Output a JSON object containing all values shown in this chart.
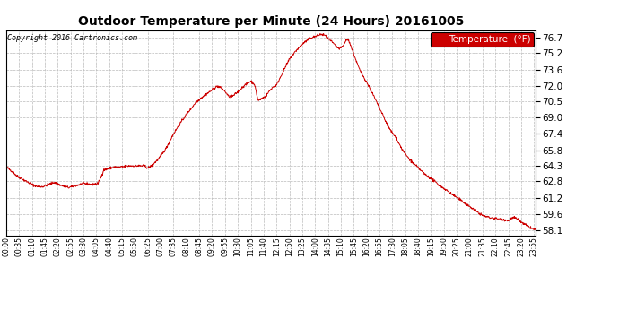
{
  "title": "Outdoor Temperature per Minute (24 Hours) 20161005",
  "copyright": "Copyright 2016 Cartronics.com",
  "legend_label": "Temperature  (°F)",
  "line_color": "#cc0000",
  "background_color": "#ffffff",
  "grid_color": "#bbbbbb",
  "legend_bg": "#cc0000",
  "legend_text_color": "#ffffff",
  "yticks": [
    58.1,
    59.6,
    61.2,
    62.8,
    64.3,
    65.8,
    67.4,
    69.0,
    70.5,
    72.0,
    73.6,
    75.2,
    76.7
  ],
  "ylim": [
    57.6,
    77.4
  ],
  "xtick_interval_minutes": 35,
  "total_minutes": 1440,
  "key_points": [
    [
      0,
      64.2
    ],
    [
      15,
      63.8
    ],
    [
      30,
      63.3
    ],
    [
      50,
      62.9
    ],
    [
      70,
      62.5
    ],
    [
      85,
      62.3
    ],
    [
      100,
      62.3
    ],
    [
      115,
      62.5
    ],
    [
      130,
      62.7
    ],
    [
      150,
      62.4
    ],
    [
      170,
      62.2
    ],
    [
      190,
      62.4
    ],
    [
      210,
      62.6
    ],
    [
      230,
      62.5
    ],
    [
      250,
      62.6
    ],
    [
      260,
      63.4
    ],
    [
      265,
      63.9
    ],
    [
      275,
      64.0
    ],
    [
      285,
      64.1
    ],
    [
      295,
      64.2
    ],
    [
      305,
      64.15
    ],
    [
      315,
      64.2
    ],
    [
      335,
      64.3
    ],
    [
      355,
      64.3
    ],
    [
      375,
      64.3
    ],
    [
      385,
      64.1
    ],
    [
      395,
      64.3
    ],
    [
      415,
      65.0
    ],
    [
      435,
      66.0
    ],
    [
      455,
      67.4
    ],
    [
      475,
      68.5
    ],
    [
      495,
      69.5
    ],
    [
      515,
      70.4
    ],
    [
      535,
      71.0
    ],
    [
      555,
      71.5
    ],
    [
      565,
      71.8
    ],
    [
      575,
      72.0
    ],
    [
      585,
      71.8
    ],
    [
      595,
      71.5
    ],
    [
      605,
      71.0
    ],
    [
      615,
      71.0
    ],
    [
      625,
      71.3
    ],
    [
      635,
      71.6
    ],
    [
      645,
      72.0
    ],
    [
      655,
      72.2
    ],
    [
      665,
      72.5
    ],
    [
      675,
      72.2
    ],
    [
      685,
      70.6
    ],
    [
      695,
      70.8
    ],
    [
      705,
      71.0
    ],
    [
      715,
      71.5
    ],
    [
      725,
      71.9
    ],
    [
      735,
      72.1
    ],
    [
      750,
      73.2
    ],
    [
      770,
      74.6
    ],
    [
      790,
      75.5
    ],
    [
      810,
      76.2
    ],
    [
      830,
      76.7
    ],
    [
      845,
      76.85
    ],
    [
      855,
      77.0
    ],
    [
      865,
      76.95
    ],
    [
      875,
      76.6
    ],
    [
      885,
      76.3
    ],
    [
      895,
      75.9
    ],
    [
      905,
      75.6
    ],
    [
      915,
      75.8
    ],
    [
      925,
      76.5
    ],
    [
      932,
      76.4
    ],
    [
      940,
      75.6
    ],
    [
      950,
      74.6
    ],
    [
      962,
      73.5
    ],
    [
      980,
      72.4
    ],
    [
      1000,
      71.0
    ],
    [
      1020,
      69.5
    ],
    [
      1040,
      68.0
    ],
    [
      1060,
      67.0
    ],
    [
      1078,
      65.8
    ],
    [
      1095,
      65.0
    ],
    [
      1108,
      64.5
    ],
    [
      1118,
      64.2
    ],
    [
      1138,
      63.5
    ],
    [
      1158,
      63.0
    ],
    [
      1175,
      62.5
    ],
    [
      1195,
      62.0
    ],
    [
      1215,
      61.5
    ],
    [
      1235,
      61.0
    ],
    [
      1255,
      60.5
    ],
    [
      1275,
      60.0
    ],
    [
      1295,
      59.5
    ],
    [
      1315,
      59.3
    ],
    [
      1335,
      59.2
    ],
    [
      1355,
      59.1
    ],
    [
      1365,
      59.0
    ],
    [
      1372,
      59.2
    ],
    [
      1382,
      59.3
    ],
    [
      1392,
      59.1
    ],
    [
      1402,
      58.8
    ],
    [
      1412,
      58.6
    ],
    [
      1422,
      58.4
    ],
    [
      1432,
      58.2
    ],
    [
      1439,
      58.1
    ]
  ]
}
